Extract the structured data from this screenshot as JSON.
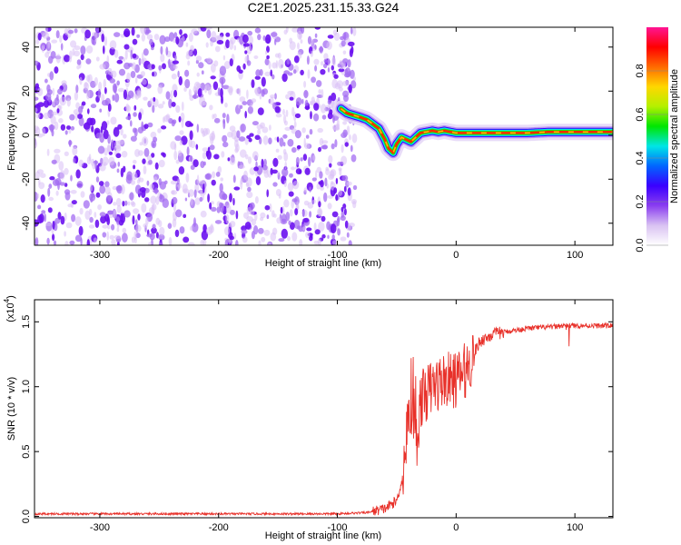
{
  "page": {
    "title": "C2E1.2025.231.15.33.G24"
  },
  "chart_data": [
    {
      "type": "heatmap",
      "xlabel": "Height of straight line (km)",
      "ylabel": "Frequency (Hz)",
      "xlim": [
        -355,
        132
      ],
      "ylim": [
        -50,
        49
      ],
      "xticks": [
        -300,
        -200,
        -100,
        0,
        100
      ],
      "yticks": [
        -40,
        -20,
        0,
        20,
        40
      ],
      "noise_region_x": [
        -355,
        -85
      ],
      "ridge": {
        "x": [
          -97,
          -92,
          -86,
          -80,
          -75,
          -70,
          -65,
          -60,
          -57,
          -53,
          -50,
          -46,
          -42,
          -38,
          -34,
          -30,
          -25,
          -20,
          -15,
          -10,
          -5,
          0,
          10,
          20,
          40,
          60,
          80,
          100,
          120,
          132
        ],
        "y": [
          12,
          10,
          9,
          8,
          7,
          5,
          3,
          -2,
          -6,
          -8,
          -4,
          -1,
          -2,
          -3,
          -1,
          1,
          1.5,
          2,
          1.5,
          2,
          1.5,
          1,
          1,
          1,
          1,
          1,
          1.5,
          1.5,
          1.5,
          1.5
        ]
      },
      "colorbar": {
        "label": "Normalized spectral amplitude",
        "range": [
          0,
          1
        ],
        "ticks": [
          "0.0",
          "0.2",
          "0.4",
          "0.6",
          "0.8"
        ],
        "colors": [
          "#ffffff",
          "#d9c2f2",
          "#8a3df0",
          "#3a00ff",
          "#0066ff",
          "#00e6e6",
          "#00e600",
          "#b4f000",
          "#ffd700",
          "#ff6a00",
          "#ff0000",
          "#ff1493"
        ]
      }
    },
    {
      "type": "line",
      "xlabel": "Height of straight line (km)",
      "ylabel": "SNR (10 * v/v)",
      "yscale_label": "(x10",
      "yscale_exp": "4",
      "yscale_close": ")",
      "xlim": [
        -355,
        132
      ],
      "ylim": [
        -0.01,
        1.67
      ],
      "xticks": [
        -300,
        -200,
        -100,
        0,
        100
      ],
      "yticks": [
        "0.0",
        "0.5",
        "1.0",
        "1.5"
      ],
      "ytick_values": [
        0,
        0.5,
        1.0,
        1.5
      ],
      "color": "#e8312a",
      "profile": {
        "x": [
          -355,
          -200,
          -100,
          -75,
          -60,
          -50,
          -45,
          -42,
          -40,
          -37,
          -35,
          -33,
          -30,
          -25,
          -20,
          -10,
          0,
          10,
          20,
          30,
          40,
          60,
          80,
          90,
          100,
          132
        ],
        "y": [
          0.02,
          0.02,
          0.02,
          0.03,
          0.06,
          0.12,
          0.3,
          0.6,
          0.75,
          0.85,
          0.8,
          0.55,
          0.9,
          0.95,
          1.0,
          1.05,
          1.05,
          1.15,
          1.35,
          1.4,
          1.42,
          1.45,
          1.46,
          1.47,
          1.47,
          1.47
        ]
      }
    }
  ]
}
